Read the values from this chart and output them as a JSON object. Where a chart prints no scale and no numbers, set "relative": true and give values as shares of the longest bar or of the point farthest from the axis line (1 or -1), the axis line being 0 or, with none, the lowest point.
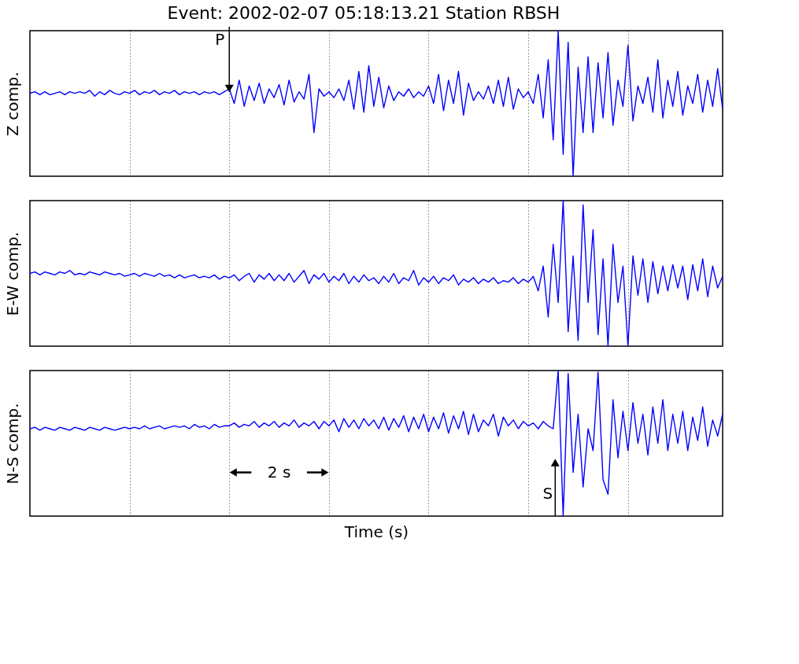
{
  "chart_data": [
    {
      "type": "line",
      "title": "Event: 2002-02-07 05:18:13.21 Station RBSH",
      "ylabel": "Z comp.",
      "relative": true,
      "grid": "x",
      "tick_labels": false,
      "legend": false,
      "marker": "none",
      "line_style": "solid",
      "categories": [
        null,
        null,
        null,
        null,
        null,
        null,
        null,
        null,
        null,
        null,
        null,
        null,
        null,
        null,
        null,
        null,
        null,
        null,
        null,
        null,
        null,
        null,
        null,
        null,
        null,
        null,
        null,
        null,
        null,
        null,
        null,
        null,
        null,
        null,
        null,
        null,
        null,
        null,
        null,
        null,
        null,
        null,
        null,
        null,
        null,
        null,
        null,
        null,
        null,
        null,
        null,
        null,
        null,
        null,
        null,
        null,
        null,
        null,
        null,
        null,
        null,
        null,
        null,
        null,
        null,
        null,
        null,
        null,
        null,
        null,
        null,
        null,
        null,
        null,
        null,
        null,
        null,
        null,
        null,
        null,
        null,
        null,
        null,
        null,
        null,
        null,
        null,
        null,
        null,
        null,
        null,
        null,
        null,
        null,
        null,
        null,
        null,
        null,
        null,
        null,
        null,
        null,
        null,
        null,
        null,
        null,
        null,
        null,
        null,
        null,
        null,
        null,
        null,
        null,
        null,
        null,
        null,
        null,
        null,
        null,
        null,
        null,
        null,
        null,
        null,
        null,
        null,
        null,
        null,
        null,
        null,
        null,
        null,
        null,
        null,
        null,
        null,
        null,
        null,
        null
      ],
      "annotations": [
        "P"
      ],
      "series": [
        {
          "color": "#0000ff",
          "values": [
            0.57,
            0.58,
            0.56,
            0.58,
            0.56,
            0.57,
            0.58,
            0.56,
            0.58,
            0.57,
            0.58,
            0.57,
            0.59,
            0.55,
            0.58,
            0.56,
            0.59,
            0.57,
            0.56,
            0.58,
            0.57,
            0.59,
            0.56,
            0.58,
            0.57,
            0.59,
            0.56,
            0.58,
            0.57,
            0.59,
            0.56,
            0.58,
            0.57,
            0.58,
            0.56,
            0.58,
            0.57,
            0.58,
            0.56,
            0.58,
            0.6,
            0.5,
            0.66,
            0.48,
            0.62,
            0.52,
            0.64,
            0.5,
            0.6,
            0.54,
            0.63,
            0.49,
            0.66,
            0.51,
            0.58,
            0.53,
            0.7,
            0.3,
            0.6,
            0.55,
            0.58,
            0.54,
            0.6,
            0.52,
            0.66,
            0.46,
            0.72,
            0.44,
            0.76,
            0.48,
            0.68,
            0.47,
            0.62,
            0.52,
            0.58,
            0.55,
            0.6,
            0.54,
            0.58,
            0.55,
            0.62,
            0.5,
            0.7,
            0.45,
            0.66,
            0.5,
            0.72,
            0.42,
            0.64,
            0.52,
            0.58,
            0.53,
            0.62,
            0.5,
            0.66,
            0.48,
            0.68,
            0.46,
            0.6,
            0.54,
            0.58,
            0.5,
            0.7,
            0.4,
            0.8,
            0.25,
            1.0,
            0.15,
            0.92,
            0.0,
            0.75,
            0.3,
            0.82,
            0.3,
            0.78,
            0.4,
            0.85,
            0.35,
            0.66,
            0.48,
            0.9,
            0.38,
            0.62,
            0.5,
            0.68,
            0.44,
            0.8,
            0.4,
            0.66,
            0.48,
            0.72,
            0.42,
            0.62,
            0.5,
            0.7,
            0.44,
            0.66,
            0.48,
            0.74,
            0.46
          ]
        }
      ]
    },
    {
      "type": "line",
      "ylabel": "E-W comp.",
      "relative": true,
      "grid": "x",
      "tick_labels": false,
      "legend": false,
      "marker": "none",
      "line_style": "solid",
      "categories": [
        null,
        null,
        null,
        null,
        null,
        null,
        null,
        null,
        null,
        null,
        null,
        null,
        null,
        null,
        null,
        null,
        null,
        null,
        null,
        null,
        null,
        null,
        null,
        null,
        null,
        null,
        null,
        null,
        null,
        null,
        null,
        null,
        null,
        null,
        null,
        null,
        null,
        null,
        null,
        null,
        null,
        null,
        null,
        null,
        null,
        null,
        null,
        null,
        null,
        null,
        null,
        null,
        null,
        null,
        null,
        null,
        null,
        null,
        null,
        null,
        null,
        null,
        null,
        null,
        null,
        null,
        null,
        null,
        null,
        null,
        null,
        null,
        null,
        null,
        null,
        null,
        null,
        null,
        null,
        null,
        null,
        null,
        null,
        null,
        null,
        null,
        null,
        null,
        null,
        null,
        null,
        null,
        null,
        null,
        null,
        null,
        null,
        null,
        null,
        null,
        null,
        null,
        null,
        null,
        null,
        null,
        null,
        null,
        null,
        null,
        null,
        null,
        null,
        null,
        null,
        null,
        null,
        null,
        null,
        null,
        null,
        null,
        null,
        null,
        null,
        null,
        null,
        null,
        null,
        null,
        null,
        null,
        null,
        null,
        null,
        null,
        null,
        null,
        null,
        null
      ],
      "series": [
        {
          "color": "#0000ff",
          "values": [
            0.5,
            0.51,
            0.49,
            0.51,
            0.5,
            0.49,
            0.51,
            0.5,
            0.52,
            0.49,
            0.5,
            0.49,
            0.51,
            0.5,
            0.49,
            0.51,
            0.5,
            0.49,
            0.5,
            0.48,
            0.49,
            0.5,
            0.48,
            0.5,
            0.49,
            0.48,
            0.5,
            0.48,
            0.49,
            0.47,
            0.49,
            0.47,
            0.48,
            0.49,
            0.47,
            0.48,
            0.47,
            0.49,
            0.46,
            0.48,
            0.47,
            0.49,
            0.45,
            0.48,
            0.5,
            0.44,
            0.49,
            0.46,
            0.5,
            0.45,
            0.49,
            0.45,
            0.5,
            0.44,
            0.48,
            0.52,
            0.43,
            0.49,
            0.46,
            0.5,
            0.44,
            0.48,
            0.45,
            0.5,
            0.43,
            0.48,
            0.44,
            0.49,
            0.45,
            0.47,
            0.43,
            0.48,
            0.44,
            0.5,
            0.43,
            0.47,
            0.45,
            0.52,
            0.42,
            0.47,
            0.44,
            0.48,
            0.43,
            0.47,
            0.45,
            0.49,
            0.42,
            0.46,
            0.44,
            0.47,
            0.43,
            0.46,
            0.44,
            0.47,
            0.43,
            0.45,
            0.44,
            0.47,
            0.43,
            0.46,
            0.44,
            0.48,
            0.38,
            0.55,
            0.2,
            0.7,
            0.3,
            1.0,
            0.1,
            0.62,
            0.04,
            0.97,
            0.3,
            0.8,
            0.08,
            0.6,
            0.0,
            0.7,
            0.3,
            0.55,
            0.0,
            0.62,
            0.35,
            0.6,
            0.3,
            0.58,
            0.36,
            0.55,
            0.38,
            0.56,
            0.4,
            0.55,
            0.32,
            0.56,
            0.38,
            0.6,
            0.34,
            0.55,
            0.4,
            0.48
          ]
        }
      ]
    },
    {
      "type": "line",
      "ylabel": "N-S comp.",
      "xlabel": "Time (s)",
      "relative": true,
      "grid": "x",
      "tick_labels": false,
      "legend": false,
      "marker": "none",
      "line_style": "solid",
      "categories": [
        null,
        null,
        null,
        null,
        null,
        null,
        null,
        null,
        null,
        null,
        null,
        null,
        null,
        null,
        null,
        null,
        null,
        null,
        null,
        null,
        null,
        null,
        null,
        null,
        null,
        null,
        null,
        null,
        null,
        null,
        null,
        null,
        null,
        null,
        null,
        null,
        null,
        null,
        null,
        null,
        null,
        null,
        null,
        null,
        null,
        null,
        null,
        null,
        null,
        null,
        null,
        null,
        null,
        null,
        null,
        null,
        null,
        null,
        null,
        null,
        null,
        null,
        null,
        null,
        null,
        null,
        null,
        null,
        null,
        null,
        null,
        null,
        null,
        null,
        null,
        null,
        null,
        null,
        null,
        null,
        null,
        null,
        null,
        null,
        null,
        null,
        null,
        null,
        null,
        null,
        null,
        null,
        null,
        null,
        null,
        null,
        null,
        null,
        null,
        null,
        null,
        null,
        null,
        null,
        null,
        null,
        null,
        null,
        null,
        null,
        null,
        null,
        null,
        null,
        null,
        null,
        null,
        null,
        null,
        null,
        null,
        null,
        null,
        null,
        null,
        null,
        null,
        null,
        null,
        null,
        null,
        null,
        null,
        null,
        null,
        null,
        null,
        null,
        null,
        null
      ],
      "annotations": [
        "S",
        "2 s"
      ],
      "series": [
        {
          "color": "#0000ff",
          "values": [
            0.6,
            0.61,
            0.59,
            0.61,
            0.6,
            0.59,
            0.61,
            0.6,
            0.59,
            0.61,
            0.6,
            0.59,
            0.61,
            0.6,
            0.59,
            0.61,
            0.6,
            0.59,
            0.6,
            0.61,
            0.6,
            0.61,
            0.6,
            0.62,
            0.6,
            0.61,
            0.62,
            0.6,
            0.61,
            0.62,
            0.61,
            0.62,
            0.6,
            0.63,
            0.61,
            0.62,
            0.6,
            0.63,
            0.61,
            0.62,
            0.62,
            0.64,
            0.61,
            0.63,
            0.62,
            0.65,
            0.61,
            0.64,
            0.62,
            0.65,
            0.61,
            0.64,
            0.62,
            0.66,
            0.61,
            0.64,
            0.62,
            0.65,
            0.6,
            0.65,
            0.62,
            0.66,
            0.58,
            0.67,
            0.61,
            0.66,
            0.6,
            0.67,
            0.62,
            0.66,
            0.6,
            0.68,
            0.59,
            0.67,
            0.61,
            0.69,
            0.58,
            0.68,
            0.6,
            0.7,
            0.58,
            0.68,
            0.6,
            0.71,
            0.57,
            0.69,
            0.6,
            0.72,
            0.56,
            0.7,
            0.58,
            0.66,
            0.62,
            0.7,
            0.55,
            0.68,
            0.62,
            0.66,
            0.6,
            0.65,
            0.62,
            0.64,
            0.6,
            0.65,
            0.62,
            0.6,
            1.0,
            0.0,
            0.98,
            0.3,
            0.7,
            0.2,
            0.6,
            0.45,
            0.99,
            0.25,
            0.15,
            0.8,
            0.4,
            0.72,
            0.45,
            0.78,
            0.5,
            0.7,
            0.42,
            0.75,
            0.5,
            0.8,
            0.45,
            0.7,
            0.5,
            0.72,
            0.45,
            0.68,
            0.52,
            0.75,
            0.48,
            0.66,
            0.55,
            0.7
          ]
        }
      ]
    }
  ]
}
